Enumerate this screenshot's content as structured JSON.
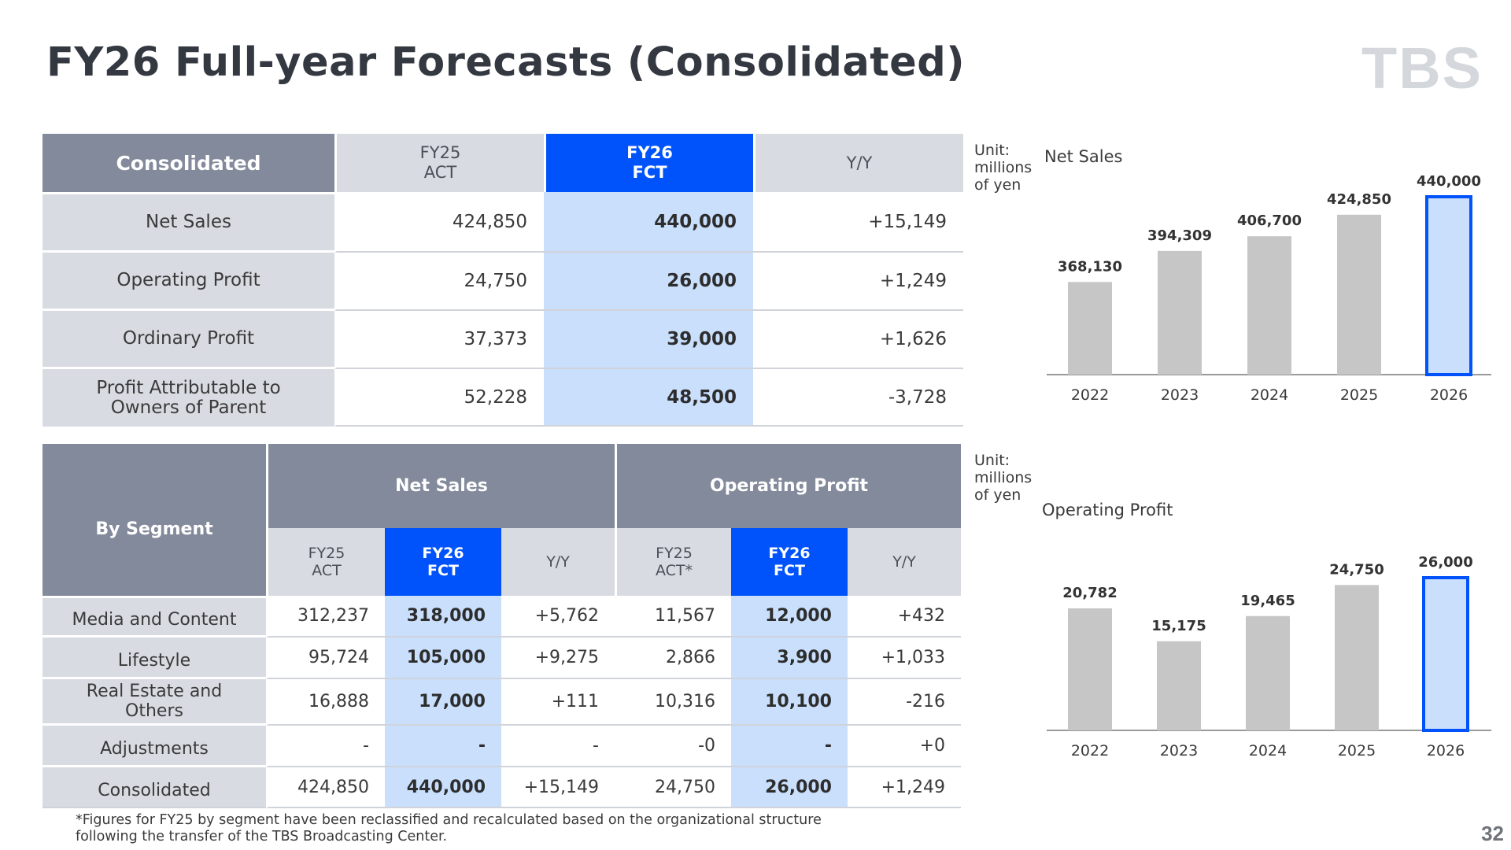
{
  "title": "FY26 Full-year Forecasts (Consolidated)",
  "logo": "TBS",
  "page_number": "32",
  "footnote_line1": "*Figures for FY25 by segment have been reclassified and recalculated based on the organizational structure",
  "footnote_line2": "following the transfer of the TBS Broadcasting Center.",
  "consolidated_table": {
    "header": {
      "label": "Consolidated",
      "fy25_line1": "FY25",
      "fy25_line2": "ACT",
      "fy26_line1": "FY26",
      "fy26_line2": "FCT",
      "yy": "Y/Y"
    },
    "rows": [
      {
        "label": "Net Sales",
        "fy25": "424,850",
        "fy26": "440,000",
        "yy": "+15,149"
      },
      {
        "label": "Operating Profit",
        "fy25": "24,750",
        "fy26": "26,000",
        "yy": "+1,249"
      },
      {
        "label": "Ordinary Profit",
        "fy25": "37,373",
        "fy26": "39,000",
        "yy": "+1,626"
      },
      {
        "label_line1": "Profit Attributable to",
        "label_line2": "Owners of Parent",
        "fy25": "52,228",
        "fy26": "48,500",
        "yy": "-3,728"
      }
    ]
  },
  "segment_table": {
    "header": {
      "label": "By Segment",
      "net_sales": "Net Sales",
      "operating_profit": "Operating Profit",
      "fy25_line1": "FY25",
      "fy25_line2": "ACT",
      "fy25_op_line2": "ACT*",
      "fy26_line1": "FY26",
      "fy26_line2": "FCT",
      "yy": "Y/Y"
    },
    "rows": [
      {
        "label": "Media and Content",
        "ns_fy25": "312,237",
        "ns_fy26": "318,000",
        "ns_yy": "+5,762",
        "op_fy25": "11,567",
        "op_fy26": "12,000",
        "op_yy": "+432"
      },
      {
        "label": "Lifestyle",
        "ns_fy25": "95,724",
        "ns_fy26": "105,000",
        "ns_yy": "+9,275",
        "op_fy25": "2,866",
        "op_fy26": "3,900",
        "op_yy": "+1,033"
      },
      {
        "label_line1": "Real Estate and",
        "label_line2": "Others",
        "ns_fy25": "16,888",
        "ns_fy26": "17,000",
        "ns_yy": "+111",
        "op_fy25": "10,316",
        "op_fy26": "10,100",
        "op_yy": "-216"
      },
      {
        "label": "Adjustments",
        "ns_fy25": "-",
        "ns_fy26": "-",
        "ns_yy": "-",
        "op_fy25": "-0",
        "op_fy26": "-",
        "op_yy": "+0"
      },
      {
        "label": "Consolidated",
        "ns_fy25": "424,850",
        "ns_fy26": "440,000",
        "ns_yy": "+15,149",
        "op_fy25": "24,750",
        "op_fy26": "26,000",
        "op_yy": "+1,249"
      }
    ]
  },
  "unit_label": {
    "line1": "Unit:",
    "line2": "millions",
    "line3": "of yen"
  },
  "colors": {
    "header_gray": "#838a9b",
    "light_gray": "#d8dbe1",
    "accent_blue": "#0053fa",
    "light_blue": "#c9dffc",
    "bar_gray": "#c6c6c6"
  },
  "chart_data": [
    {
      "type": "bar",
      "title": "Net Sales",
      "categories": [
        "2022",
        "2023",
        "2024",
        "2025",
        "2026"
      ],
      "values": [
        368130,
        394309,
        406700,
        424850,
        440000
      ],
      "value_labels": [
        "368,130",
        "394,309",
        "406,700",
        "424,850",
        "440,000"
      ],
      "highlight_index": 4,
      "ylim": [
        290000,
        440000
      ]
    },
    {
      "type": "bar",
      "title": "Operating Profit",
      "categories": [
        "2022",
        "2023",
        "2024",
        "2025",
        "2026"
      ],
      "values": [
        20782,
        15175,
        19465,
        24750,
        26000
      ],
      "value_labels": [
        "20,782",
        "15,175",
        "19,465",
        "24,750",
        "26,000"
      ],
      "highlight_index": 4,
      "ylim": [
        0,
        26000
      ]
    }
  ]
}
